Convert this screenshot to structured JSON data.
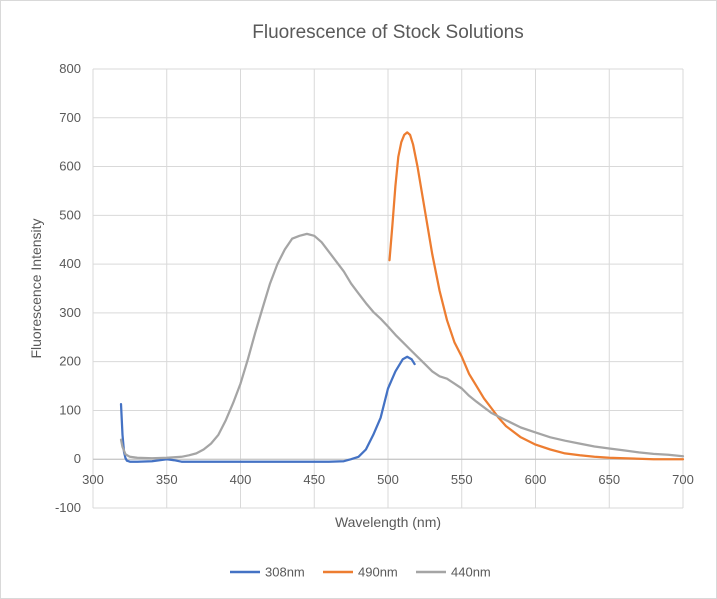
{
  "chart_data": {
    "type": "line",
    "title": "Fluorescence of Stock Solutions",
    "xlabel": "Wavelength (nm)",
    "ylabel": "Fluorescence Intensity",
    "xlim": [
      300,
      700
    ],
    "ylim": [
      -100,
      800
    ],
    "xticks": [
      300,
      350,
      400,
      450,
      500,
      550,
      600,
      650,
      700
    ],
    "yticks": [
      -100,
      0,
      100,
      200,
      300,
      400,
      500,
      600,
      700,
      800
    ],
    "grid": true,
    "legend_position": "bottom",
    "series": [
      {
        "name": "308nm",
        "color": "#4472c4",
        "x": [
          319,
          320,
          321,
          322,
          323,
          325,
          330,
          340,
          350,
          355,
          360,
          370,
          380,
          400,
          420,
          440,
          460,
          470,
          475,
          480,
          485,
          490,
          495,
          500,
          505,
          510,
          513,
          516,
          518
        ],
        "y": [
          113,
          50,
          15,
          2,
          -3,
          -5,
          -5,
          -4,
          0,
          -2,
          -5,
          -5,
          -5,
          -5,
          -5,
          -5,
          -5,
          -4,
          0,
          5,
          20,
          50,
          85,
          145,
          180,
          205,
          210,
          205,
          195
        ]
      },
      {
        "name": "490nm",
        "color": "#ed7d31",
        "x": [
          501,
          503,
          505,
          507,
          509,
          511,
          513,
          515,
          517,
          520,
          525,
          530,
          535,
          540,
          545,
          550,
          555,
          560,
          565,
          570,
          575,
          580,
          590,
          600,
          610,
          620,
          630,
          640,
          650,
          660,
          670,
          680,
          690,
          700
        ],
        "y": [
          408,
          480,
          560,
          620,
          650,
          665,
          670,
          665,
          645,
          600,
          510,
          420,
          345,
          285,
          240,
          210,
          175,
          150,
          125,
          105,
          85,
          68,
          45,
          30,
          20,
          12,
          8,
          5,
          3,
          2,
          1,
          0,
          0,
          0
        ]
      },
      {
        "name": "440nm",
        "color": "#a5a5a5",
        "x": [
          319,
          320,
          322,
          325,
          330,
          340,
          350,
          360,
          365,
          370,
          375,
          380,
          385,
          390,
          395,
          400,
          405,
          410,
          415,
          420,
          425,
          430,
          435,
          440,
          445,
          450,
          455,
          460,
          465,
          470,
          475,
          480,
          485,
          490,
          495,
          500,
          505,
          510,
          515,
          520,
          525,
          530,
          535,
          540,
          545,
          550,
          555,
          560,
          570,
          580,
          590,
          600,
          610,
          620,
          630,
          640,
          650,
          660,
          670,
          680,
          690,
          700
        ],
        "y": [
          40,
          25,
          10,
          5,
          3,
          2,
          3,
          5,
          8,
          12,
          20,
          32,
          50,
          80,
          115,
          155,
          205,
          260,
          310,
          360,
          400,
          430,
          452,
          458,
          462,
          458,
          445,
          425,
          405,
          385,
          360,
          340,
          320,
          302,
          288,
          272,
          255,
          240,
          225,
          210,
          195,
          180,
          170,
          165,
          155,
          145,
          130,
          118,
          95,
          80,
          65,
          55,
          45,
          38,
          32,
          26,
          22,
          18,
          14,
          11,
          9,
          6
        ]
      }
    ]
  }
}
